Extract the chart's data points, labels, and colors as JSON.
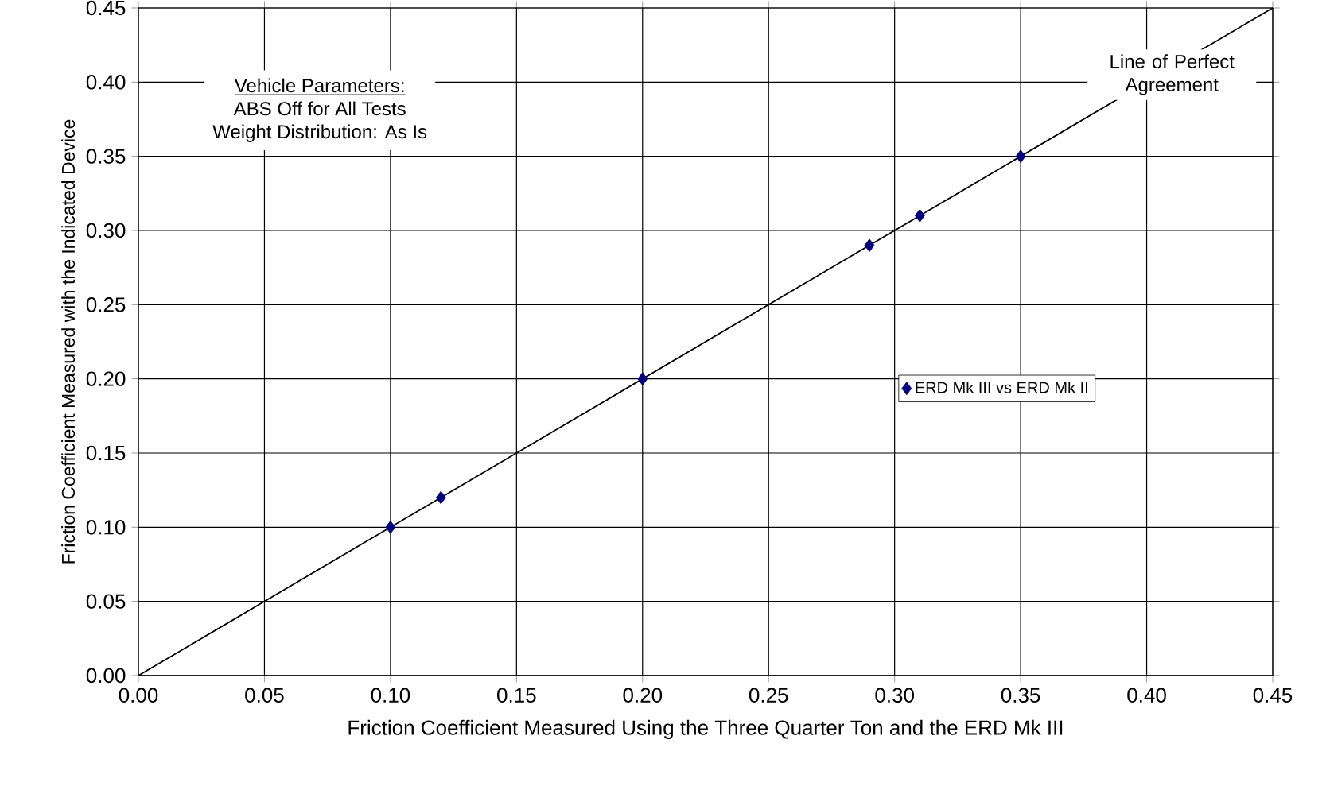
{
  "chart_data": {
    "type": "scatter",
    "xlabel": "Friction Coefficient Measured Using the Three Quarter Ton and the ERD Mk III",
    "ylabel": "Friction Coefficient Measured with the Indicated Device",
    "series": [
      {
        "name": "ERD Mk III vs ERD Mk II",
        "color": "#000080",
        "x": [
          0.1,
          0.12,
          0.2,
          0.29,
          0.31,
          0.35
        ],
        "values": [
          0.1,
          0.12,
          0.2,
          0.29,
          0.31,
          0.35
        ],
        "marker": "diamond"
      },
      {
        "type": "line",
        "color": "#000000",
        "x": [
          0,
          0.45
        ],
        "values": [
          0,
          0.45
        ],
        "marker": "none",
        "line_style": "solid"
      }
    ],
    "xlim": [
      0,
      0.45
    ],
    "ylim": [
      0,
      0.45
    ],
    "xticks": [
      {
        "value": 0,
        "label": "0.00"
      },
      {
        "value": 0.05,
        "label": "0.05"
      },
      {
        "value": 0.1,
        "label": "0.10"
      },
      {
        "value": 0.15,
        "label": "0.15"
      },
      {
        "value": 0.2,
        "label": "0.20"
      },
      {
        "value": 0.25,
        "label": "0.25"
      },
      {
        "value": 0.3,
        "label": "0.30"
      },
      {
        "value": 0.35,
        "label": "0.35"
      },
      {
        "value": 0.4,
        "label": "0.40"
      },
      {
        "value": 0.45,
        "label": "0.45"
      }
    ],
    "yticks": [
      {
        "value": 0,
        "label": "0.00"
      },
      {
        "value": 0.05,
        "label": "0.05"
      },
      {
        "value": 0.1,
        "label": "0.10"
      },
      {
        "value": 0.15,
        "label": "0.15"
      },
      {
        "value": 0.2,
        "label": "0.20"
      },
      {
        "value": 0.25,
        "label": "0.25"
      },
      {
        "value": 0.3,
        "label": "0.30"
      },
      {
        "value": 0.35,
        "label": "0.35"
      },
      {
        "value": 0.4,
        "label": "0.40"
      },
      {
        "value": 0.45,
        "label": "0.45"
      }
    ],
    "grid": true,
    "legend": "right",
    "annotations": [
      "Vehicle Parameters:",
      "ABS Off  for All Tests",
      "Weight Distribution: As Is",
      "Line of Perfect Agreement"
    ]
  }
}
